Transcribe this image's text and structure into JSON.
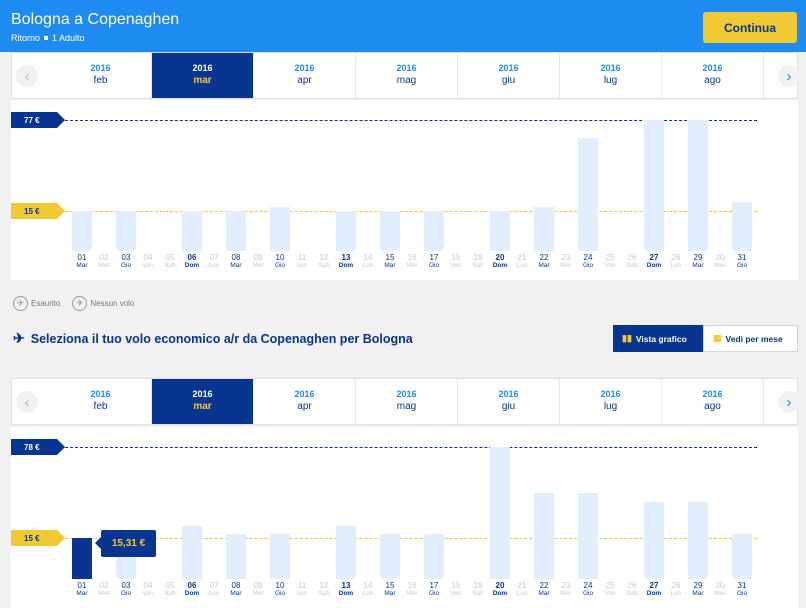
{
  "header": {
    "title": "Bologna a Copenaghen",
    "trip_type": "Ritorno",
    "passengers": "1 Adulto",
    "continue_label": "Continua"
  },
  "months": [
    {
      "year": "2016",
      "month": "feb",
      "selected": false
    },
    {
      "year": "2016",
      "month": "mar",
      "selected": true
    },
    {
      "year": "2016",
      "month": "apr",
      "selected": false
    },
    {
      "year": "2016",
      "month": "mag",
      "selected": false
    },
    {
      "year": "2016",
      "month": "giu",
      "selected": false
    },
    {
      "year": "2016",
      "month": "lug",
      "selected": false
    },
    {
      "year": "2016",
      "month": "ago",
      "selected": false
    }
  ],
  "days": [
    {
      "d": "01",
      "w": "Mar"
    },
    {
      "d": "02",
      "w": "Mer"
    },
    {
      "d": "03",
      "w": "Gio"
    },
    {
      "d": "04",
      "w": "Ven"
    },
    {
      "d": "05",
      "w": "Sab"
    },
    {
      "d": "06",
      "w": "Dom"
    },
    {
      "d": "07",
      "w": "Lun"
    },
    {
      "d": "08",
      "w": "Mar"
    },
    {
      "d": "09",
      "w": "Mer"
    },
    {
      "d": "10",
      "w": "Gio"
    },
    {
      "d": "11",
      "w": "Ven"
    },
    {
      "d": "12",
      "w": "Sab"
    },
    {
      "d": "13",
      "w": "Dom"
    },
    {
      "d": "14",
      "w": "Lun"
    },
    {
      "d": "15",
      "w": "Mar"
    },
    {
      "d": "16",
      "w": "Mer"
    },
    {
      "d": "17",
      "w": "Gio"
    },
    {
      "d": "18",
      "w": "Ven"
    },
    {
      "d": "19",
      "w": "Sab"
    },
    {
      "d": "20",
      "w": "Dom"
    },
    {
      "d": "21",
      "w": "Lun"
    },
    {
      "d": "22",
      "w": "Mar"
    },
    {
      "d": "23",
      "w": "Mer"
    },
    {
      "d": "24",
      "w": "Gio"
    },
    {
      "d": "25",
      "w": "Ven"
    },
    {
      "d": "26",
      "w": "Sab"
    },
    {
      "d": "27",
      "w": "Dom"
    },
    {
      "d": "28",
      "w": "Lun"
    },
    {
      "d": "29",
      "w": "Mar"
    },
    {
      "d": "30",
      "w": "Mer"
    },
    {
      "d": "31",
      "w": "Gio"
    }
  ],
  "outbound": {
    "max_label": "77 €",
    "min_label": "15 €",
    "max_value": 77,
    "min_value": 15,
    "bar_values": [
      15,
      null,
      15,
      null,
      null,
      15,
      null,
      15,
      null,
      18,
      null,
      null,
      15,
      null,
      15,
      null,
      15,
      null,
      null,
      15,
      null,
      18,
      null,
      65,
      null,
      null,
      77,
      null,
      77,
      null,
      21
    ],
    "selected_day": null
  },
  "legend": {
    "sold_out": "Esaurito",
    "no_flight": "Nessun volo"
  },
  "return_section": {
    "title": "Seleziona il tuo volo economico a/r da Copenaghen per Bologna",
    "graph_view_label": "Vista grafico",
    "month_view_label": "Vedi per mese"
  },
  "inbound": {
    "max_label": "78 €",
    "min_label": "15 €",
    "max_value": 78,
    "min_value": 15,
    "bar_values": [
      15.31,
      null,
      15,
      null,
      null,
      23,
      null,
      18,
      null,
      18,
      null,
      null,
      23,
      null,
      18,
      null,
      18,
      null,
      null,
      78,
      null,
      46,
      null,
      46,
      null,
      null,
      40,
      null,
      40,
      null,
      18
    ],
    "selected_day": 0,
    "tooltip": "15,31 €"
  },
  "colors": {
    "brand_blue": "#073590",
    "header_blue": "#1e8bf0",
    "accent_yellow": "#f1c933",
    "bar_light": "#e1effd"
  }
}
